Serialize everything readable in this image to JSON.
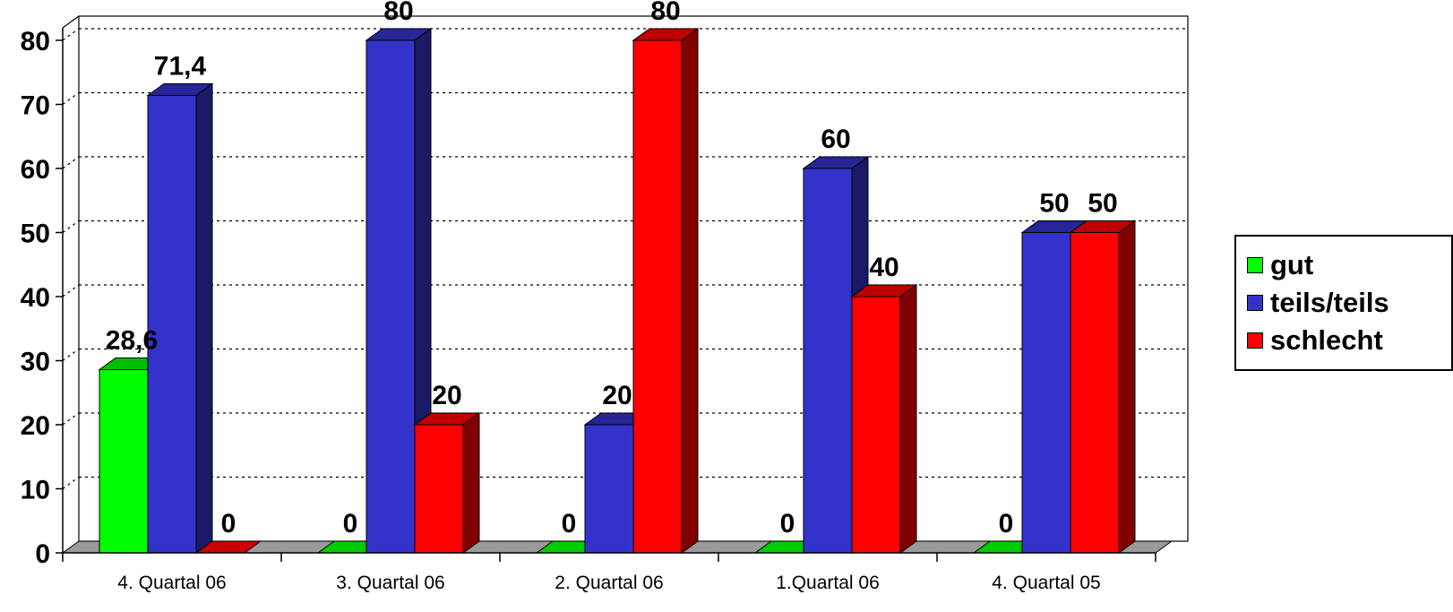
{
  "chart_data": {
    "type": "bar",
    "categories": [
      "4. Quartal 06",
      "3. Quartal 06",
      "2. Quartal 06",
      "1.Quartal 06",
      "4. Quartal 05"
    ],
    "series": [
      {
        "name": "gut",
        "color": "#00ff00",
        "values": [
          28.6,
          0,
          0,
          0,
          0
        ],
        "labels": [
          "28,6",
          "0",
          "0",
          "0",
          "0"
        ]
      },
      {
        "name": "teils/teils",
        "color": "#3333cc",
        "values": [
          71.4,
          80,
          20,
          60,
          50
        ],
        "labels": [
          "71,4",
          "80",
          "20",
          "60",
          "50"
        ]
      },
      {
        "name": "schlecht",
        "color": "#ff0000",
        "values": [
          0,
          20,
          80,
          40,
          50
        ],
        "labels": [
          "0",
          "20",
          "80",
          "40",
          "50"
        ]
      }
    ],
    "ylim": [
      0,
      80
    ],
    "yticks": [
      "0",
      "10",
      "20",
      "30",
      "40",
      "50",
      "60",
      "70",
      "80"
    ],
    "grid": true,
    "legend_position": "right"
  }
}
